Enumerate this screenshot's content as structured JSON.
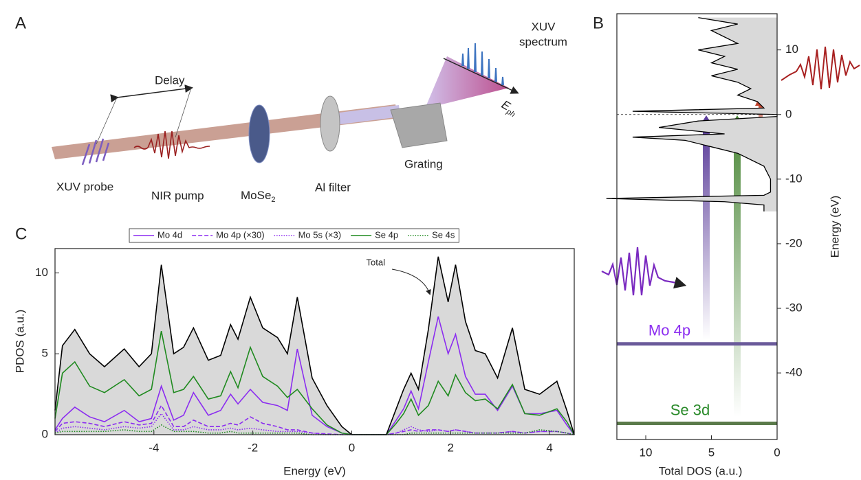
{
  "diagram": {
    "panel_label": "A",
    "labels": {
      "xuv_spectrum": [
        "XUV",
        "spectrum"
      ],
      "delay": "Delay",
      "xuv_probe": "XUV probe",
      "nir_pump": "NIR pump",
      "sample": {
        "base": "MoSe",
        "sub": "2"
      },
      "al_filter": "Al filter",
      "grating": "Grating",
      "photon_energy": {
        "base": "E",
        "sub": "ph"
      }
    }
  },
  "chart_data": [
    {
      "panel_label": "B",
      "type": "dos",
      "xlabel": "Total DOS (a.u.)",
      "ylabel": "Energy (eV)",
      "xlim": [
        12.2,
        0
      ],
      "ylim": [
        -50.3,
        15.6
      ],
      "xticks": [
        10,
        5,
        0
      ],
      "yticks": [
        10,
        0,
        -10,
        -20,
        -30,
        -40
      ],
      "fill": "#d9d9d9",
      "color": "#000000",
      "energy": [
        15,
        14,
        13,
        12,
        11,
        10,
        9,
        8,
        7,
        6,
        5,
        4,
        3,
        2,
        1,
        0.5,
        0,
        -0.3,
        -1,
        -2,
        -3,
        -3.5,
        -4,
        -5,
        -6,
        -7,
        -8,
        -10,
        -12,
        -12.5,
        -13,
        -13.5,
        -14,
        -15
      ],
      "dos": [
        6,
        3,
        5,
        4,
        3,
        6,
        4,
        5,
        3,
        5,
        3,
        2,
        3,
        1.5,
        1.0,
        11,
        0,
        0,
        6,
        9,
        4,
        11,
        7,
        5,
        3,
        2,
        1,
        0.5,
        0.5,
        1,
        13,
        4,
        1,
        1
      ],
      "levels": [
        {
          "name": "Mo 4p",
          "energy": -35.5,
          "color": "#8b2cf0",
          "line_color": "#6a5a9a"
        },
        {
          "name": "Se 3d",
          "energy": -47.8,
          "color": "#2a8a2a",
          "line_color": "#5a7a4a"
        }
      ]
    },
    {
      "panel_label": "C",
      "type": "line",
      "xlabel": "Energy (eV)",
      "ylabel": "PDOS (a.u.)",
      "xlim": [
        -6,
        4.5
      ],
      "ylim": [
        0,
        11.5
      ],
      "xticks": [
        -4,
        -2,
        0,
        2,
        4
      ],
      "yticks": [
        0,
        5,
        10
      ],
      "x": [
        -6.0,
        -5.85,
        -5.6,
        -5.3,
        -5.0,
        -4.6,
        -4.3,
        -4.05,
        -3.85,
        -3.6,
        -3.4,
        -3.2,
        -2.9,
        -2.65,
        -2.45,
        -2.3,
        -2.05,
        -1.8,
        -1.5,
        -1.3,
        -1.1,
        -0.8,
        -0.5,
        -0.2,
        0,
        0.3,
        0.7,
        0.9,
        1.05,
        1.2,
        1.35,
        1.55,
        1.75,
        1.95,
        2.1,
        2.3,
        2.5,
        2.7,
        2.95,
        3.25,
        3.5,
        3.8,
        4.15,
        4.35,
        4.5
      ],
      "total": {
        "label": "Total",
        "fill": "#d9d9d9",
        "color": "#000000",
        "values": [
          1.5,
          5.5,
          6.5,
          5.0,
          4.2,
          5.3,
          4.2,
          5.0,
          10.5,
          5.0,
          5.4,
          6.6,
          4.6,
          4.9,
          6.8,
          5.9,
          8.5,
          6.6,
          6.0,
          5.0,
          8.5,
          3.5,
          1.8,
          0.5,
          0,
          0,
          0,
          1.6,
          2.8,
          3.8,
          2.8,
          6.5,
          11.0,
          8.2,
          10.5,
          7.0,
          5.2,
          5.0,
          3.5,
          6.6,
          2.8,
          2.5,
          3.3,
          1.5,
          0
        ]
      },
      "series": [
        {
          "name": "Mo 4d",
          "color": "#8b2cf0",
          "dash": "solid",
          "values": [
            0.3,
            1.0,
            1.7,
            1.1,
            0.8,
            1.5,
            0.8,
            1.0,
            3.0,
            0.9,
            1.2,
            2.6,
            1.2,
            1.5,
            2.5,
            1.9,
            2.8,
            2.0,
            1.8,
            1.5,
            5.3,
            1.2,
            0.5,
            0.1,
            0,
            0,
            0,
            0.9,
            1.6,
            2.7,
            1.6,
            4.5,
            7.3,
            5.0,
            6.2,
            3.6,
            2.5,
            2.5,
            1.5,
            3.0,
            1.3,
            1.3,
            1.5,
            0.6,
            0
          ]
        },
        {
          "name": "Mo 4p (×30)",
          "color": "#8b2cf0",
          "dash": "dashed",
          "values": [
            0.2,
            0.7,
            0.8,
            0.7,
            0.5,
            0.8,
            0.6,
            0.7,
            1.8,
            0.5,
            0.5,
            0.9,
            0.5,
            0.5,
            0.7,
            0.6,
            1.1,
            0.7,
            0.5,
            0.3,
            0.3,
            0.1,
            0.05,
            0,
            0,
            0,
            0,
            0.1,
            0.2,
            0.3,
            0.2,
            0.3,
            0.3,
            0.2,
            0.3,
            0.2,
            0.1,
            0.1,
            0.1,
            0.2,
            0.1,
            0.2,
            0.2,
            0.1,
            0
          ]
        },
        {
          "name": "Mo 5s (×3)",
          "color": "#8b2cf0",
          "dash": "dotted",
          "values": [
            0.1,
            0.4,
            0.5,
            0.4,
            0.3,
            0.5,
            0.4,
            0.5,
            1.3,
            0.3,
            0.3,
            0.5,
            0.3,
            0.3,
            0.4,
            0.3,
            0.4,
            0.3,
            0.2,
            0.2,
            0.2,
            0.1,
            0,
            0,
            0,
            0,
            0,
            0.1,
            0.3,
            0.5,
            0.3,
            0.2,
            0.3,
            0.2,
            0.3,
            0.2,
            0.1,
            0.1,
            0.1,
            0.2,
            0.1,
            0.2,
            0.2,
            0.1,
            0
          ]
        },
        {
          "name": "Se 4p",
          "color": "#1f8a1f",
          "dash": "solid",
          "values": [
            1.0,
            3.8,
            4.5,
            3.0,
            2.6,
            3.4,
            2.4,
            2.8,
            6.4,
            2.6,
            2.8,
            3.6,
            2.2,
            2.4,
            3.9,
            2.9,
            5.4,
            3.6,
            3.0,
            2.3,
            2.8,
            1.6,
            0.6,
            0.1,
            0,
            0,
            0,
            0.7,
            1.3,
            2.2,
            1.2,
            1.8,
            3.3,
            2.4,
            3.7,
            2.6,
            2.1,
            2.2,
            1.6,
            3.1,
            1.3,
            1.2,
            1.6,
            0.8,
            0
          ]
        },
        {
          "name": "Se 4s",
          "color": "#1f8a1f",
          "dash": "dotted",
          "values": [
            0.1,
            0.2,
            0.2,
            0.2,
            0.2,
            0.3,
            0.2,
            0.2,
            0.6,
            0.2,
            0.2,
            0.2,
            0.1,
            0.1,
            0.2,
            0.1,
            0.1,
            0.1,
            0.1,
            0.1,
            0.1,
            0,
            0,
            0,
            0,
            0,
            0,
            0,
            0,
            0.1,
            0.1,
            0.1,
            0.1,
            0.1,
            0.1,
            0.1,
            0.1,
            0.1,
            0.1,
            0.1,
            0.1,
            0.3,
            0.2,
            0.1,
            0
          ]
        }
      ]
    }
  ]
}
